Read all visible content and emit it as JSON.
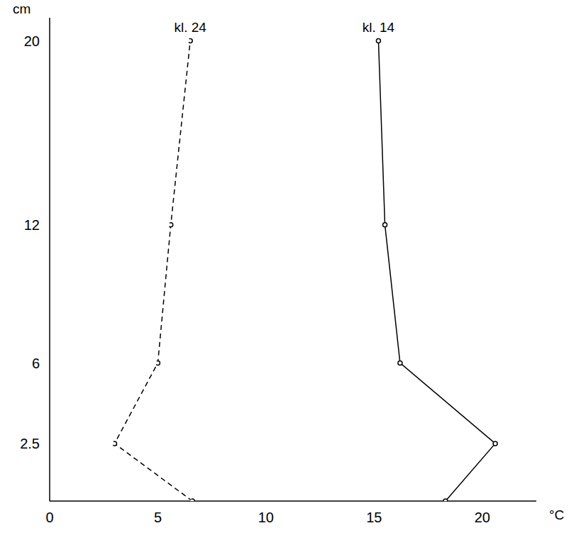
{
  "chart_data": {
    "type": "line",
    "xlabel": "°C",
    "ylabel": "cm",
    "xlim": [
      0,
      22.5
    ],
    "ylim": [
      0,
      21
    ],
    "xticks": [
      0,
      5,
      10,
      15,
      20
    ],
    "yticks": [
      2.5,
      6,
      12,
      20
    ],
    "grid": false,
    "series": [
      {
        "name": "kl. 24",
        "color": "#000000",
        "line_style": "dashed",
        "marker": "circle",
        "x": [
          6.6,
          3.0,
          5.0,
          5.6,
          6.5
        ],
        "values": [
          0,
          2.5,
          6,
          12,
          20
        ]
      },
      {
        "name": "kl. 14",
        "color": "#000000",
        "line_style": "solid",
        "marker": "circle",
        "x": [
          18.3,
          20.6,
          16.2,
          15.5,
          15.2
        ],
        "values": [
          0,
          2.5,
          6,
          12,
          20
        ]
      }
    ]
  }
}
